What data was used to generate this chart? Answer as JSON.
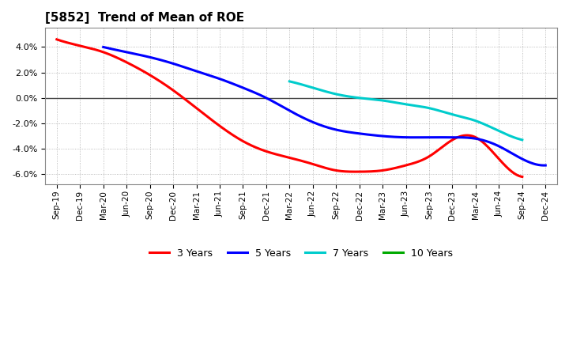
{
  "title": "[5852]  Trend of Mean of ROE",
  "background_color": "#ffffff",
  "plot_bg_color": "#ffffff",
  "grid_color": "#aaaaaa",
  "x_labels": [
    "Sep-19",
    "Dec-19",
    "Mar-20",
    "Jun-20",
    "Sep-20",
    "Dec-20",
    "Mar-21",
    "Jun-21",
    "Sep-21",
    "Dec-21",
    "Mar-22",
    "Jun-22",
    "Sep-22",
    "Dec-22",
    "Mar-23",
    "Jun-23",
    "Sep-23",
    "Dec-23",
    "Mar-24",
    "Jun-24",
    "Sep-24",
    "Dec-24"
  ],
  "ylim": [
    -0.068,
    0.055
  ],
  "yticks": [
    -0.06,
    -0.04,
    -0.02,
    0.0,
    0.02,
    0.04
  ],
  "series": {
    "3 Years": {
      "color": "#ff0000",
      "data_x": [
        0,
        1,
        2,
        3,
        4,
        5,
        6,
        7,
        8,
        9,
        10,
        11,
        12,
        13,
        14,
        15,
        16,
        17,
        18,
        19,
        20
      ],
      "data_y": [
        0.046,
        0.041,
        0.036,
        0.028,
        0.018,
        0.006,
        -0.008,
        -0.022,
        -0.034,
        -0.042,
        -0.047,
        -0.052,
        -0.057,
        -0.058,
        -0.057,
        -0.053,
        -0.046,
        -0.033,
        -0.031,
        -0.048,
        -0.062
      ]
    },
    "5 Years": {
      "color": "#0000ff",
      "data_x": [
        2,
        3,
        4,
        5,
        6,
        7,
        8,
        9,
        10,
        11,
        12,
        13,
        14,
        15,
        16,
        17,
        18,
        19,
        20,
        21
      ],
      "data_y": [
        0.04,
        0.036,
        0.032,
        0.027,
        0.021,
        0.015,
        0.008,
        0.0,
        -0.01,
        -0.019,
        -0.025,
        -0.028,
        -0.03,
        -0.031,
        -0.031,
        -0.031,
        -0.032,
        -0.038,
        -0.048,
        -0.053
      ]
    },
    "7 Years": {
      "color": "#00cccc",
      "data_x": [
        10,
        11,
        12,
        13,
        14,
        15,
        16,
        17,
        18,
        19,
        20
      ],
      "data_y": [
        0.013,
        0.008,
        0.003,
        0.0,
        -0.002,
        -0.005,
        -0.008,
        -0.013,
        -0.018,
        -0.026,
        -0.033
      ]
    },
    "10 Years": {
      "color": "#00aa00",
      "data_x": [],
      "data_y": []
    }
  },
  "legend_order": [
    "3 Years",
    "5 Years",
    "7 Years",
    "10 Years"
  ],
  "line_width": 2.2,
  "title_fontsize": 11,
  "tick_fontsize": 7.5,
  "legend_fontsize": 9
}
